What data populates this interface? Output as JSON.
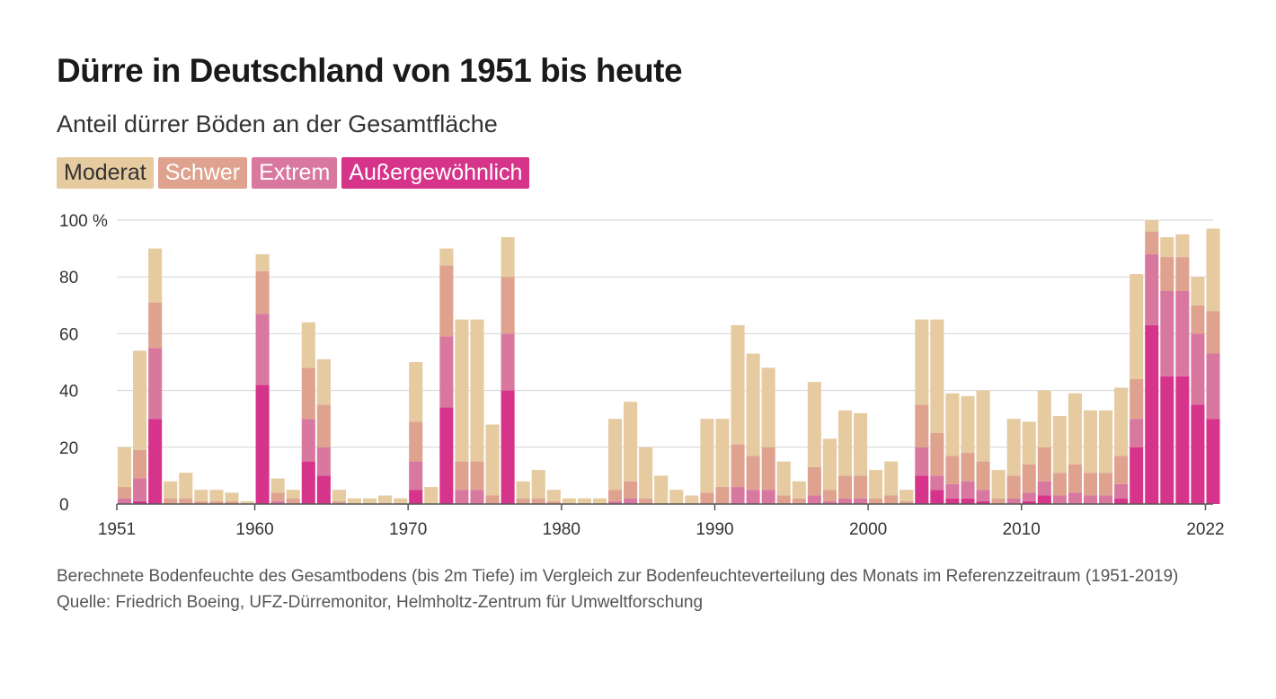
{
  "title": "Dürre in Deutschland von 1951 bis heute",
  "subtitle": "Anteil dürrer Böden an der Gesamtfläche",
  "legend": [
    {
      "label": "Moderat",
      "color": "#e6caa0"
    },
    {
      "label": "Schwer",
      "color": "#dea28f"
    },
    {
      "label": "Extrem",
      "color": "#d8789f"
    },
    {
      "label": "Außergewöhnlich",
      "color": "#d6338a"
    }
  ],
  "notes": {
    "method": "Berechnete Bodenfeuchte des Gesamtbodens (bis 2m Tiefe) im Vergleich zur Bodenfeuchteverteilung des Monats im Referenzzeitraum (1951-2019)",
    "source": "Quelle: Friedrich Boeing, UFZ-Dürremonitor, Helmholtz-Zentrum für Umweltforschung"
  },
  "chart_data": {
    "type": "bar",
    "stacked": true,
    "title": "Dürre in Deutschland von 1951 bis heute",
    "ylabel": "Anteil dürrer Böden an der Gesamtfläche (%)",
    "ylim": [
      0,
      100
    ],
    "xlim": [
      1951,
      2022.5
    ],
    "y_ticks": [
      0,
      20,
      40,
      60,
      80,
      100
    ],
    "y_tick_labels": [
      "0",
      "20",
      "40",
      "60",
      "80",
      "100 %"
    ],
    "x_ticks": [
      1951,
      1960,
      1970,
      1980,
      1990,
      2000,
      2010,
      2022
    ],
    "x_tick_labels": [
      "1951",
      "1960",
      "1970",
      "1980",
      "1990",
      "2000",
      "2010",
      "2022"
    ],
    "grid": true,
    "categories_note": "approximate annual maximum of monthly values, read from chart",
    "categories": [
      "1951",
      "1952",
      "1953",
      "1954",
      "1955",
      "1956",
      "1957",
      "1958",
      "1959",
      "1960",
      "1961",
      "1962",
      "1963",
      "1964",
      "1965",
      "1966",
      "1967",
      "1968",
      "1969",
      "1970",
      "1971",
      "1972",
      "1973",
      "1974",
      "1975",
      "1976",
      "1977",
      "1978",
      "1979",
      "1980",
      "1981",
      "1982",
      "1983",
      "1984",
      "1985",
      "1986",
      "1987",
      "1988",
      "1989",
      "1990",
      "1991",
      "1992",
      "1993",
      "1994",
      "1995",
      "1996",
      "1997",
      "1998",
      "1999",
      "2000",
      "2001",
      "2002",
      "2003",
      "2004",
      "2005",
      "2006",
      "2007",
      "2008",
      "2009",
      "2010",
      "2011",
      "2012",
      "2013",
      "2014",
      "2015",
      "2016",
      "2017",
      "2018",
      "2019",
      "2020",
      "2021",
      "2022"
    ],
    "series": [
      {
        "name": "Moderat",
        "values": [
          14,
          35,
          19,
          6,
          9,
          4,
          4,
          3,
          1,
          6,
          5,
          3,
          16,
          16,
          4,
          2,
          2,
          3,
          2,
          21,
          6,
          6,
          50,
          50,
          25,
          14,
          6,
          10,
          4,
          2,
          2,
          2,
          25,
          28,
          18,
          10,
          5,
          3,
          26,
          24,
          42,
          36,
          28,
          12,
          6,
          30,
          18,
          23,
          22,
          10,
          12,
          4,
          30,
          40,
          22,
          20,
          25,
          10,
          20,
          15,
          20,
          20,
          25,
          22,
          22,
          24,
          37,
          4,
          7,
          8,
          10,
          29
        ]
      },
      {
        "name": "Schwer",
        "values": [
          4,
          10,
          16,
          2,
          2,
          1,
          1,
          1,
          0,
          15,
          3,
          2,
          18,
          15,
          1,
          0,
          0,
          0,
          0,
          14,
          0,
          25,
          10,
          10,
          3,
          20,
          2,
          2,
          1,
          0,
          0,
          0,
          4,
          6,
          2,
          0,
          0,
          0,
          4,
          6,
          15,
          12,
          15,
          3,
          2,
          10,
          4,
          8,
          8,
          2,
          3,
          1,
          15,
          15,
          10,
          10,
          10,
          2,
          8,
          10,
          12,
          8,
          10,
          8,
          8,
          10,
          14,
          8,
          12,
          12,
          10,
          15
        ]
      },
      {
        "name": "Extrem",
        "values": [
          2,
          8,
          25,
          0,
          0,
          0,
          0,
          0,
          0,
          25,
          1,
          0,
          15,
          10,
          0,
          0,
          0,
          0,
          0,
          10,
          0,
          25,
          5,
          5,
          0,
          20,
          0,
          0,
          0,
          0,
          0,
          0,
          1,
          2,
          0,
          0,
          0,
          0,
          0,
          0,
          6,
          5,
          5,
          0,
          0,
          3,
          1,
          2,
          2,
          0,
          0,
          0,
          10,
          5,
          5,
          6,
          4,
          0,
          2,
          3,
          5,
          3,
          4,
          3,
          3,
          5,
          10,
          25,
          30,
          30,
          25,
          23
        ]
      },
      {
        "name": "Außergewöhnlich",
        "values": [
          0,
          1,
          30,
          0,
          0,
          0,
          0,
          0,
          0,
          42,
          0,
          0,
          15,
          10,
          0,
          0,
          0,
          0,
          0,
          5,
          0,
          34,
          0,
          0,
          0,
          40,
          0,
          0,
          0,
          0,
          0,
          0,
          0,
          0,
          0,
          0,
          0,
          0,
          0,
          0,
          0,
          0,
          0,
          0,
          0,
          0,
          0,
          0,
          0,
          0,
          0,
          0,
          10,
          5,
          2,
          2,
          1,
          0,
          0,
          1,
          3,
          0,
          0,
          0,
          0,
          2,
          20,
          63,
          45,
          45,
          35,
          30
        ]
      }
    ]
  }
}
